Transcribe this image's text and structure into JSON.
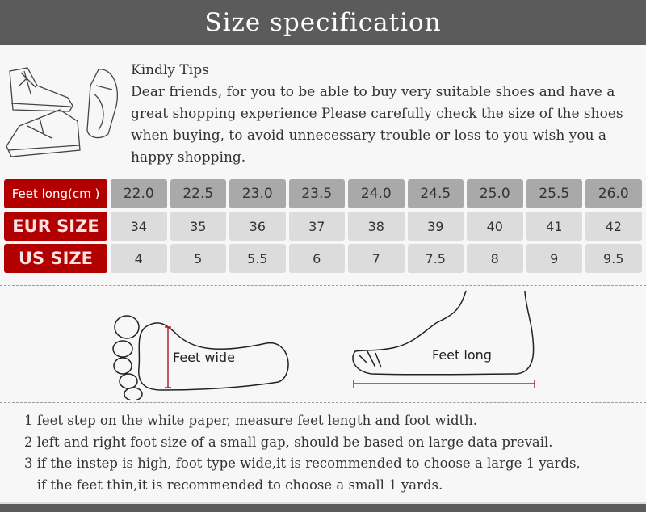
{
  "header": {
    "title": "Size specification"
  },
  "tips": {
    "title": "Kindly Tips",
    "body": "Dear friends, for you to be able to buy very suitable shoes and have a great shopping experience Please carefully check the size of the shoes when buying, to avoid unnecessary trouble or loss to you wish you a happy shopping."
  },
  "table": {
    "rows": [
      {
        "label": "Feet long(cm )",
        "values": [
          "22.0",
          "22.5",
          "23.0",
          "23.5",
          "24.0",
          "24.5",
          "25.0",
          "25.5",
          "26.0"
        ]
      },
      {
        "label": "EUR SIZE",
        "values": [
          "34",
          "35",
          "36",
          "37",
          "38",
          "39",
          "40",
          "41",
          "42"
        ]
      },
      {
        "label": "US SIZE",
        "values": [
          "4",
          "5",
          "5.5",
          "6",
          "7",
          "7.5",
          "8",
          "9",
          "9.5"
        ]
      }
    ],
    "label_color": "#b20000"
  },
  "diagram": {
    "feet_wide": "Feet wide",
    "feet_long": "Feet long"
  },
  "notes": [
    "1 feet step on the white paper, measure feet  length and foot width.",
    "2 left and right foot size of a small gap, should be based on large data prevail.",
    "3 if the instep is high, foot type wide,it is recommended to choose a large 1 yards,",
    "   if the feet thin,it is recommended to choose a small 1 yards."
  ]
}
